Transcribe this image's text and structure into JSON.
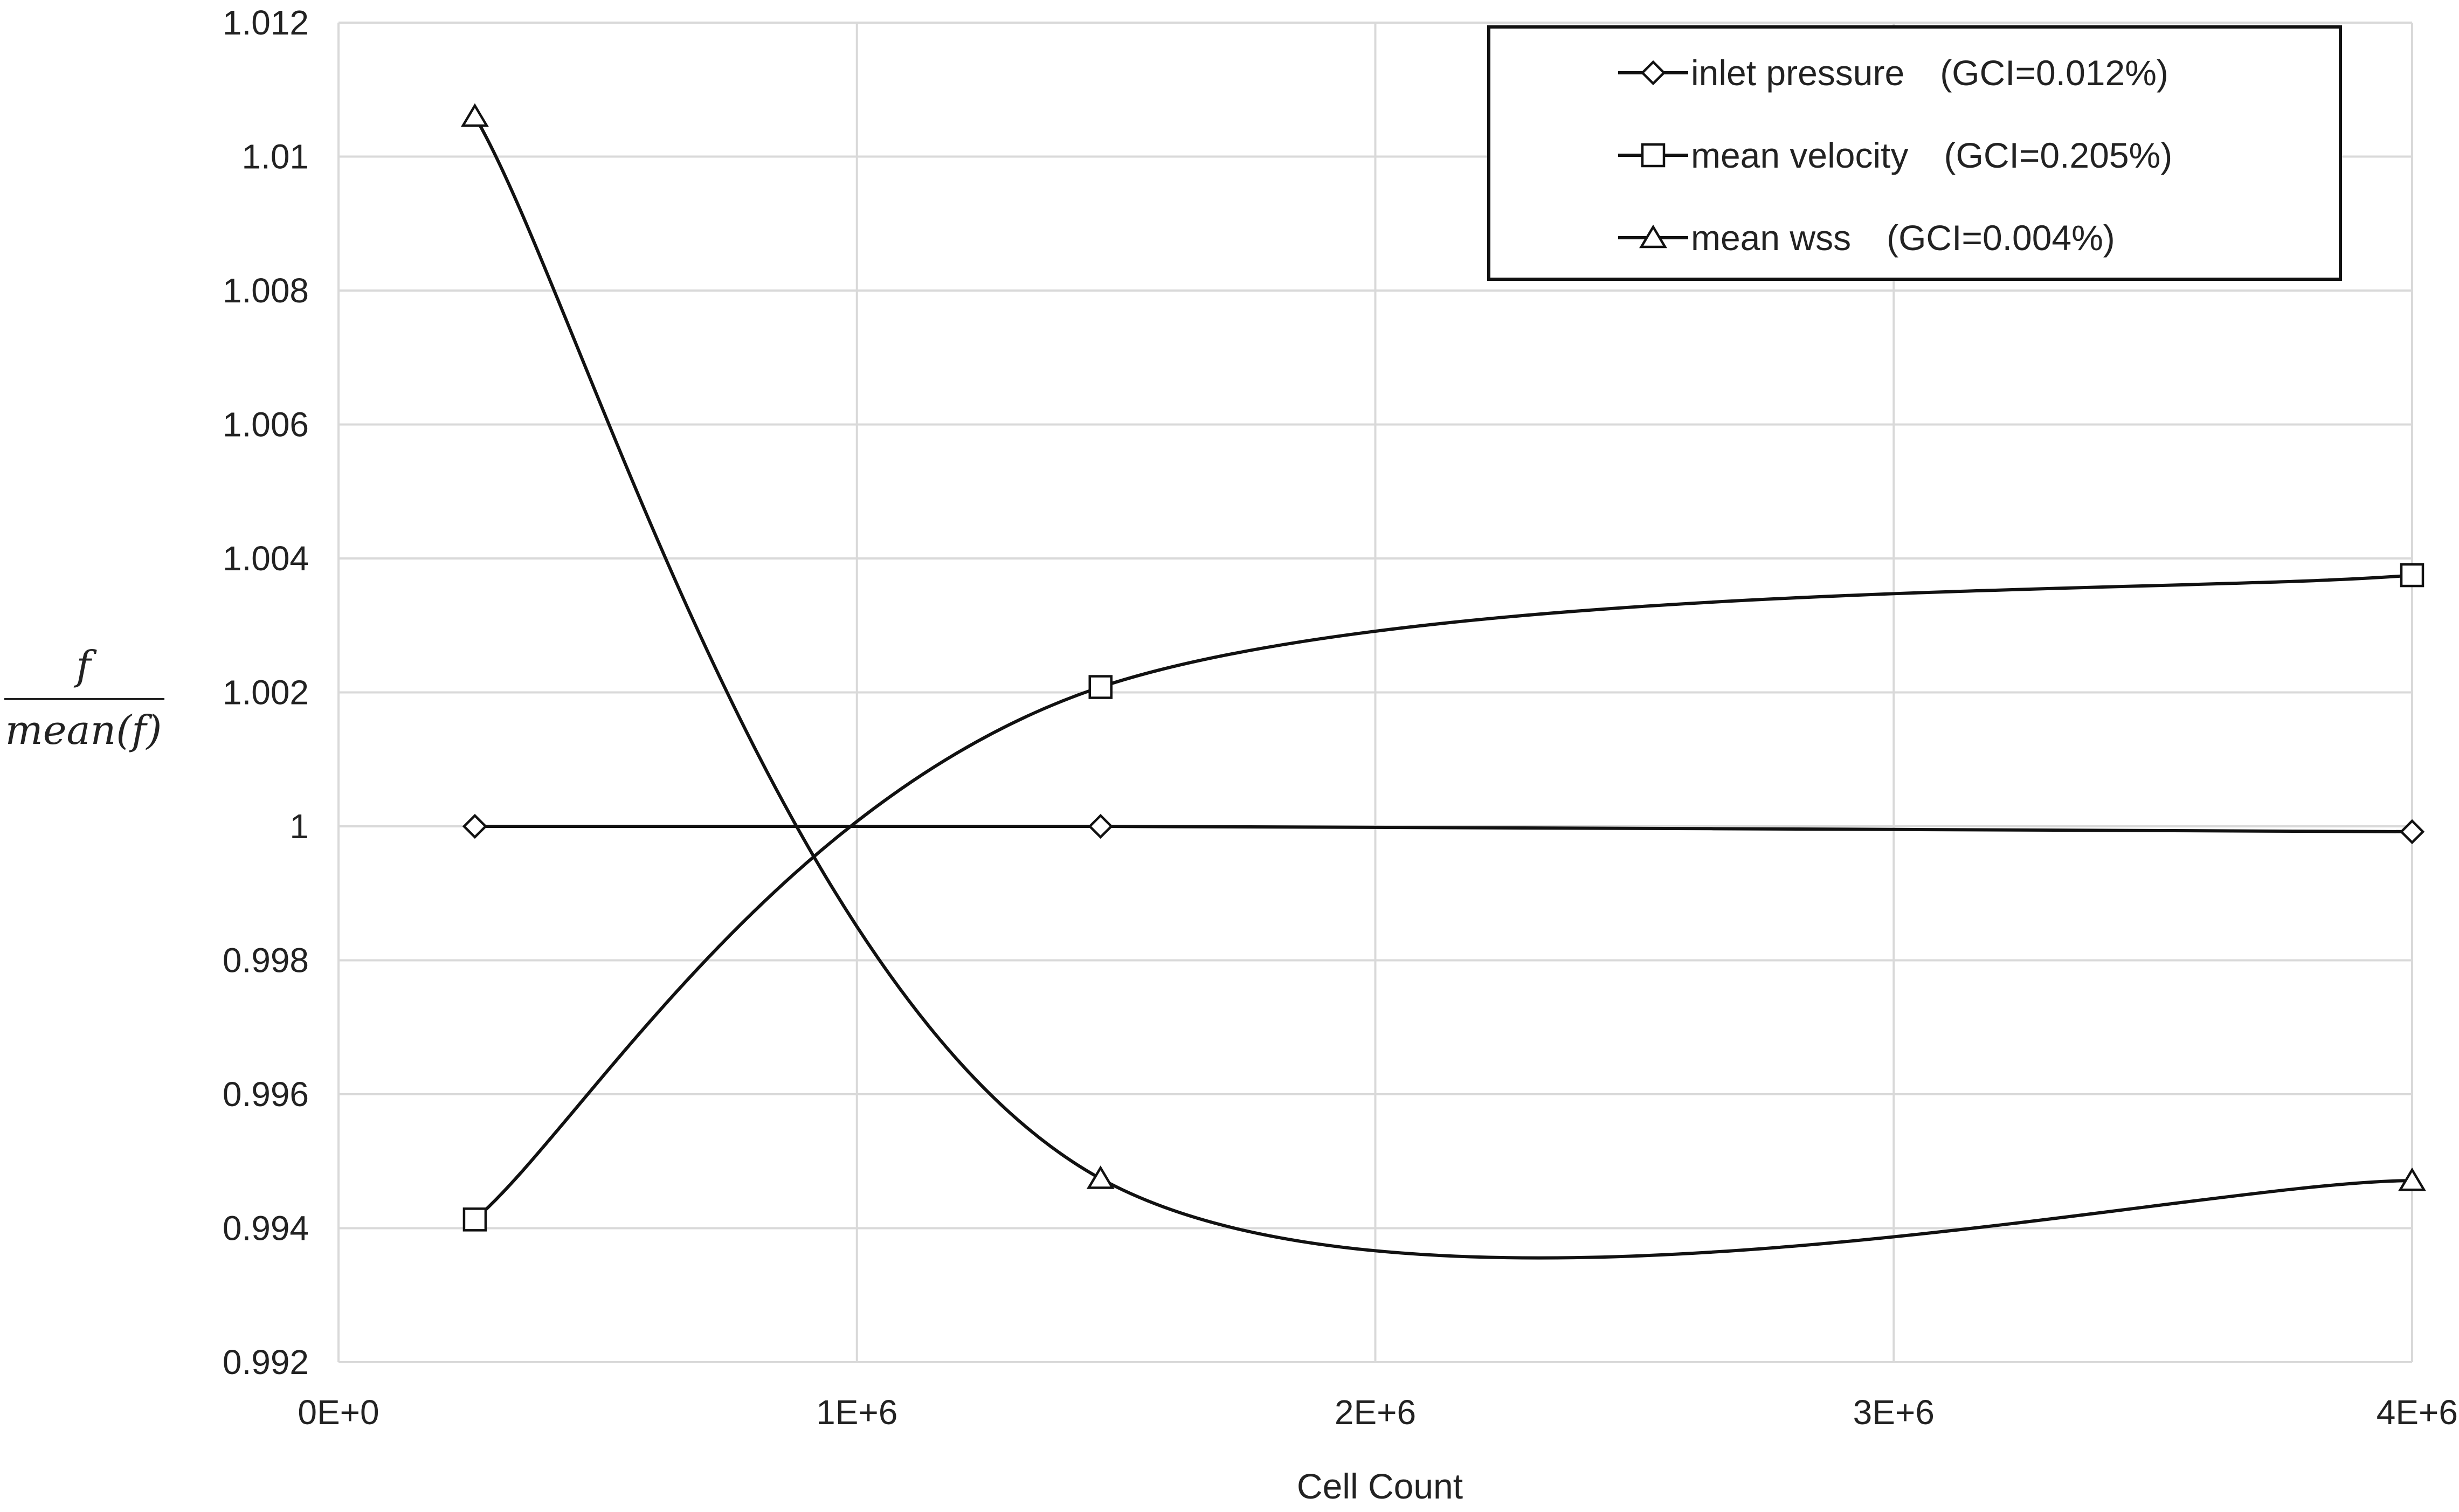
{
  "chart_data": {
    "type": "line",
    "title": "",
    "xlabel": "Cell Count",
    "ylabel": {
      "numerator": "f",
      "denominator": "mean(f)"
    },
    "xlim": [
      0,
      4000000
    ],
    "ylim": [
      0.992,
      1.012
    ],
    "x_ticks": [
      0,
      1000000,
      2000000,
      3000000,
      4000000
    ],
    "x_tick_labels": [
      "0E+0",
      "1E+6",
      "2E+6",
      "3E+6",
      "4E+6"
    ],
    "y_ticks": [
      0.992,
      0.994,
      0.996,
      0.998,
      1.0,
      1.002,
      1.004,
      1.006,
      1.008,
      1.01,
      1.012
    ],
    "y_tick_labels": [
      "0.992",
      "0.994",
      "0.996",
      "0.998",
      "1",
      "1.002",
      "1.004",
      "1.006",
      "1.008",
      "1.01",
      "1.012"
    ],
    "grid": true,
    "legend_position": "top-right",
    "x": [
      263000,
      1470000,
      4000000
    ],
    "series": [
      {
        "name": "inlet pressure　(GCI=0.012%)",
        "marker": "diamond",
        "values": [
          1.0,
          1.0,
          0.99992
        ]
      },
      {
        "name": "mean velocity　(GCI=0.205%)",
        "marker": "square",
        "values": [
          0.99413,
          1.00208,
          1.00375
        ]
      },
      {
        "name": "mean wss　(GCI=0.004%)",
        "marker": "triangle",
        "values": [
          1.0106,
          0.99474,
          0.99471
        ]
      }
    ]
  }
}
